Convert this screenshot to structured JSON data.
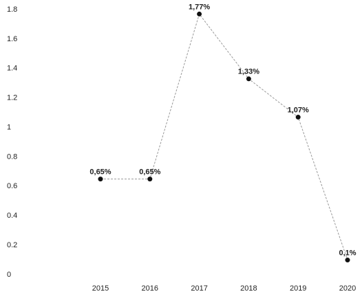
{
  "chart_data": {
    "type": "line",
    "categories": [
      "2015",
      "2016",
      "2017",
      "2018",
      "2019",
      "2020"
    ],
    "values": [
      0.65,
      0.65,
      1.77,
      1.33,
      1.07,
      0.1
    ],
    "value_labels": [
      "0,65%",
      "0,65%",
      "1,77%",
      "1,33%",
      "1,07%",
      "0,1%"
    ],
    "color": "#999999",
    "marker_color": "#111111",
    "ylim": [
      0,
      1.8
    ],
    "yticks": [
      0,
      0.2,
      0.4,
      0.6,
      0.8,
      1,
      1.2,
      1.4,
      1.6,
      1.8
    ],
    "grid": false
  }
}
